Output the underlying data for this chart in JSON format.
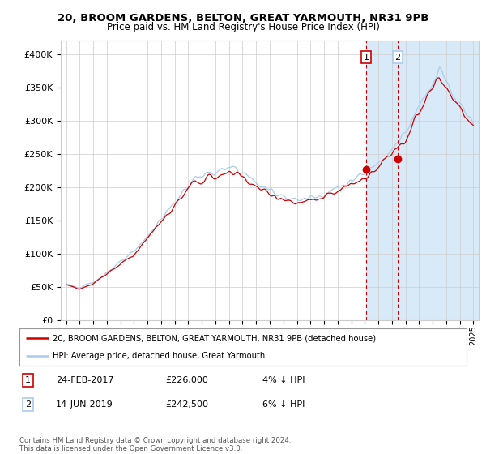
{
  "title": "20, BROOM GARDENS, BELTON, GREAT YARMOUTH, NR31 9PB",
  "subtitle": "Price paid vs. HM Land Registry's House Price Index (HPI)",
  "ylabel_ticks": [
    "£0",
    "£50K",
    "£100K",
    "£150K",
    "£200K",
    "£250K",
    "£300K",
    "£350K",
    "£400K"
  ],
  "ytick_values": [
    0,
    50000,
    100000,
    150000,
    200000,
    250000,
    300000,
    350000,
    400000
  ],
  "ylim": [
    0,
    420000
  ],
  "xlim_min": 1994.6,
  "xlim_max": 2025.4,
  "sale1_x": 2017.12,
  "sale1_y": 226000,
  "sale2_x": 2019.44,
  "sale2_y": 242500,
  "legend_line1": "20, BROOM GARDENS, BELTON, GREAT YARMOUTH, NR31 9PB (detached house)",
  "legend_line2": "HPI: Average price, detached house, Great Yarmouth",
  "table_row1": [
    "1",
    "24-FEB-2017",
    "£226,000",
    "4% ↓ HPI"
  ],
  "table_row2": [
    "2",
    "14-JUN-2019",
    "£242,500",
    "6% ↓ HPI"
  ],
  "footer": "Contains HM Land Registry data © Crown copyright and database right 2024.\nThis data is licensed under the Open Government Licence v3.0.",
  "hpi_color": "#aaccee",
  "sold_color": "#cc0000",
  "vline_color": "#cc0000",
  "highlight_color": "#d8eaf8",
  "background_color": "#ffffff",
  "grid_color": "#cccccc",
  "label1_edge": "#cc0000",
  "label2_edge": "#aaccee"
}
